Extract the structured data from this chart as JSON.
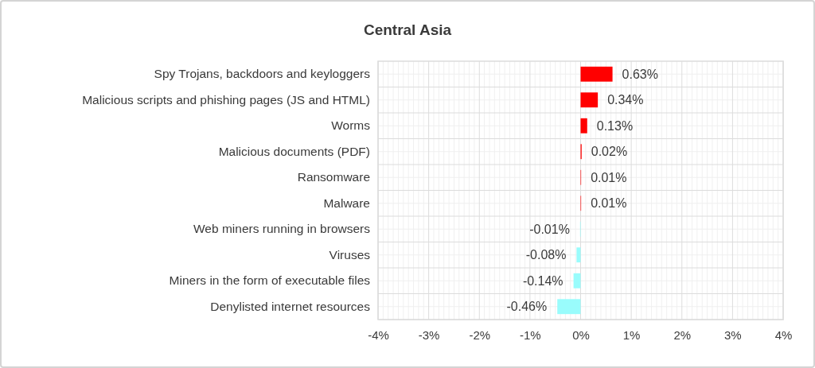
{
  "chart_data": {
    "type": "bar",
    "title": "Central Asia",
    "orientation": "horizontal",
    "categories": [
      "Spy Trojans, backdoors and keyloggers",
      "Malicious scripts and phishing pages (JS and HTML)",
      "Worms",
      "Malicious documents (PDF)",
      "Ransomware",
      "Malware",
      "Web miners running in browsers",
      "Viruses",
      "Miners in the form of executable files",
      "Denylisted internet resources"
    ],
    "values": [
      0.63,
      0.34,
      0.13,
      0.02,
      0.01,
      0.01,
      -0.01,
      -0.08,
      -0.14,
      -0.46
    ],
    "colors": [
      "#ff0000",
      "#ff0000",
      "#ff0000",
      "#ff0000",
      "#ff0000",
      "#ff0000",
      "#99fcfc",
      "#99fcfc",
      "#99fcfc",
      "#99fcfc"
    ],
    "value_labels": [
      "0.63%",
      "0.34%",
      "0.13%",
      "0.02%",
      "0.01%",
      "0.01%",
      "-0.01%",
      "-0.08%",
      "-0.14%",
      "-0.46%"
    ],
    "xlim": [
      -4,
      4
    ],
    "xticks": [
      {
        "value": -4,
        "label": "-4%"
      },
      {
        "value": -3,
        "label": "-3%"
      },
      {
        "value": -2,
        "label": "-2%"
      },
      {
        "value": -1,
        "label": "-1%"
      },
      {
        "value": 0,
        "label": "0%"
      },
      {
        "value": 1,
        "label": "1%"
      },
      {
        "value": 2,
        "label": "2%"
      },
      {
        "value": 3,
        "label": "3%"
      },
      {
        "value": 4,
        "label": "4%"
      }
    ],
    "grid": true
  }
}
